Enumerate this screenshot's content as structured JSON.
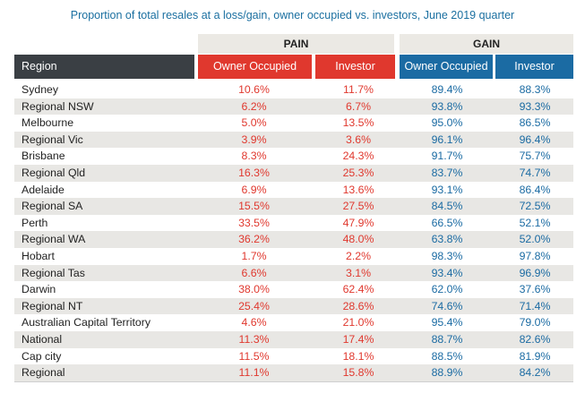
{
  "chart_data": {
    "type": "table",
    "title": "Proportion of total resales at a loss/gain, owner occupied vs. investors, June 2019 quarter",
    "groups": [
      "PAIN",
      "GAIN"
    ],
    "columns": [
      "Region",
      "Owner Occupied",
      "Investor",
      "Owner Occupied",
      "Investor"
    ],
    "rows": [
      {
        "region": "Sydney",
        "pain_owner": "10.6%",
        "pain_investor": "11.7%",
        "gain_owner": "89.4%",
        "gain_investor": "88.3%"
      },
      {
        "region": "Regional NSW",
        "pain_owner": "6.2%",
        "pain_investor": "6.7%",
        "gain_owner": "93.8%",
        "gain_investor": "93.3%"
      },
      {
        "region": "Melbourne",
        "pain_owner": "5.0%",
        "pain_investor": "13.5%",
        "gain_owner": "95.0%",
        "gain_investor": "86.5%"
      },
      {
        "region": "Regional Vic",
        "pain_owner": "3.9%",
        "pain_investor": "3.6%",
        "gain_owner": "96.1%",
        "gain_investor": "96.4%"
      },
      {
        "region": "Brisbane",
        "pain_owner": "8.3%",
        "pain_investor": "24.3%",
        "gain_owner": "91.7%",
        "gain_investor": "75.7%"
      },
      {
        "region": "Regional Qld",
        "pain_owner": "16.3%",
        "pain_investor": "25.3%",
        "gain_owner": "83.7%",
        "gain_investor": "74.7%"
      },
      {
        "region": "Adelaide",
        "pain_owner": "6.9%",
        "pain_investor": "13.6%",
        "gain_owner": "93.1%",
        "gain_investor": "86.4%"
      },
      {
        "region": "Regional SA",
        "pain_owner": "15.5%",
        "pain_investor": "27.5%",
        "gain_owner": "84.5%",
        "gain_investor": "72.5%"
      },
      {
        "region": "Perth",
        "pain_owner": "33.5%",
        "pain_investor": "47.9%",
        "gain_owner": "66.5%",
        "gain_investor": "52.1%"
      },
      {
        "region": "Regional WA",
        "pain_owner": "36.2%",
        "pain_investor": "48.0%",
        "gain_owner": "63.8%",
        "gain_investor": "52.0%"
      },
      {
        "region": "Hobart",
        "pain_owner": "1.7%",
        "pain_investor": "2.2%",
        "gain_owner": "98.3%",
        "gain_investor": "97.8%"
      },
      {
        "region": "Regional Tas",
        "pain_owner": "6.6%",
        "pain_investor": "3.1%",
        "gain_owner": "93.4%",
        "gain_investor": "96.9%"
      },
      {
        "region": "Darwin",
        "pain_owner": "38.0%",
        "pain_investor": "62.4%",
        "gain_owner": "62.0%",
        "gain_investor": "37.6%"
      },
      {
        "region": "Regional NT",
        "pain_owner": "25.4%",
        "pain_investor": "28.6%",
        "gain_owner": "74.6%",
        "gain_investor": "71.4%"
      },
      {
        "region": "Australian Capital Territory",
        "pain_owner": "4.6%",
        "pain_investor": "21.0%",
        "gain_owner": "95.4%",
        "gain_investor": "79.0%"
      },
      {
        "region": "National",
        "pain_owner": "11.3%",
        "pain_investor": "17.4%",
        "gain_owner": "88.7%",
        "gain_investor": "82.6%"
      },
      {
        "region": "Cap city",
        "pain_owner": "11.5%",
        "pain_investor": "18.1%",
        "gain_owner": "88.5%",
        "gain_investor": "81.9%"
      },
      {
        "region": "Regional",
        "pain_owner": "11.1%",
        "pain_investor": "15.8%",
        "gain_owner": "88.9%",
        "gain_investor": "84.2%"
      }
    ],
    "colors": {
      "pain": "#e0382e",
      "gain": "#1b6ba3",
      "region_header": "#3a3f44",
      "group_band": "#ebe9e4"
    }
  }
}
